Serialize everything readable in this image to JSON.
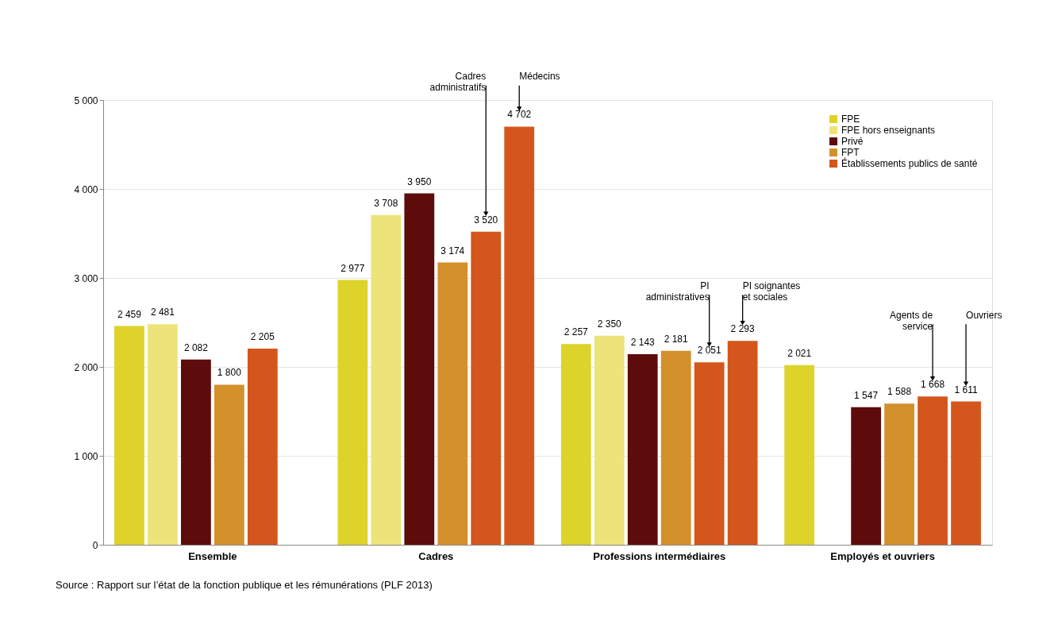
{
  "chart_data": {
    "type": "bar",
    "categories": [
      "Ensemble",
      "Cadres",
      "Professions intermédiaires",
      "Employés et ouvriers"
    ],
    "ylim": [
      0,
      5000
    ],
    "yticks": [
      0,
      {
        "value": 1000,
        "label": "1 000"
      },
      {
        "value": 2000,
        "label": "2 000"
      },
      {
        "value": 3000,
        "label": "3 000"
      },
      {
        "value": 4000,
        "label": "4 000"
      },
      {
        "value": 5000,
        "label": "5 000"
      }
    ],
    "grid": "y",
    "legend": "top right",
    "series": [
      {
        "name": "FPE",
        "color": "#ddd32b",
        "values": [
          2459,
          2977,
          2257,
          2021
        ],
        "value_labels": [
          "2 459",
          "2 977",
          "2 257",
          "2 021"
        ]
      },
      {
        "name": "FPE hors enseignants",
        "color": "#ece47a",
        "values": [
          2481,
          3708,
          2350,
          null
        ],
        "value_labels": [
          "2 481",
          "3 708",
          "2 350",
          null
        ]
      },
      {
        "name": "Privé",
        "color": "#5e0b0b",
        "values": [
          2082,
          3950,
          2143,
          1547
        ],
        "value_labels": [
          "2 082",
          "3 950",
          "2 143",
          "1 547"
        ]
      },
      {
        "name": "FPT",
        "color": "#d4902b",
        "values": [
          1800,
          3174,
          2181,
          1588
        ],
        "value_labels": [
          "1 800",
          "3 174",
          "2 181",
          "1 588"
        ]
      },
      {
        "name": "Établissements publics de santé",
        "color": "#d4561c",
        "values": [
          2205,
          3520,
          2051,
          1668
        ],
        "value_labels": [
          "2 205",
          "3 520",
          "2 051",
          "1 668"
        ]
      },
      {
        "color": "#d4561c",
        "values": [
          null,
          4702,
          2293,
          1611
        ],
        "value_labels": [
          null,
          "4 702",
          "2 293",
          "1 611"
        ]
      }
    ],
    "annotations": [
      "Cadres administratifs",
      "Médecins",
      "PI administratives",
      "PI soignantes et sociales",
      "Agents de service",
      "Ouvriers",
      "Source : Rapport sur l’état de la fonction publique et les rémunérations (PLF 2013)"
    ]
  }
}
